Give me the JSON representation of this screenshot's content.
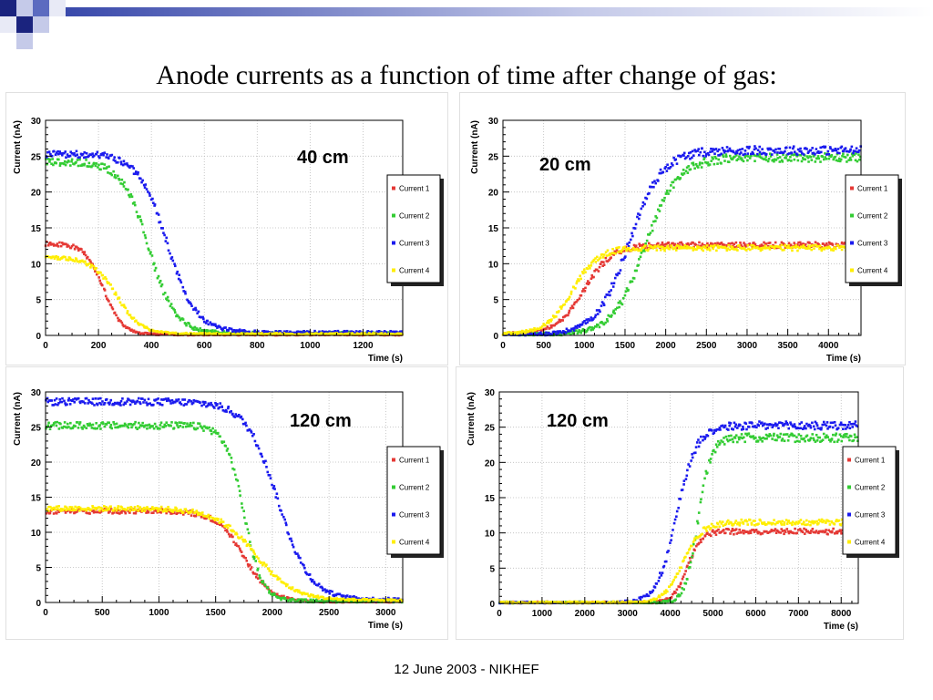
{
  "slide": {
    "title": "Anode currents as a function of time after change of gas:",
    "footer": "12 June 2003 - NIKHEF",
    "decor_colors": [
      "#1a237e",
      "#5c6bc0",
      "#c5cae9",
      "#e8eaf6"
    ]
  },
  "chart_data": [
    {
      "type": "scatter",
      "title": "",
      "annotation": "40 cm",
      "xlabel": "Time (s)",
      "ylabel": "Current (nA)",
      "xlim": [
        0,
        1350
      ],
      "ylim": [
        0,
        30
      ],
      "xticks": [
        0,
        200,
        400,
        600,
        800,
        1000,
        1200
      ],
      "yticks": [
        0,
        5,
        10,
        15,
        20,
        25,
        30
      ],
      "grid": true,
      "legend": "right",
      "series": [
        {
          "name": "Current 1",
          "color": "#e53935",
          "start": 12.8,
          "end": 0.1,
          "mid": 220,
          "width": 35,
          "tmin": 0,
          "tmax": 1350,
          "noise": 0.3
        },
        {
          "name": "Current 2",
          "color": "#33cc33",
          "start": 24.2,
          "end": 0.3,
          "mid": 390,
          "width": 50,
          "tmin": 0,
          "tmax": 1350,
          "noise": 0.5
        },
        {
          "name": "Current 3",
          "color": "#1a1aee",
          "start": 25.3,
          "end": 0.4,
          "mid": 460,
          "width": 55,
          "tmin": 0,
          "tmax": 1350,
          "noise": 0.5
        },
        {
          "name": "Current 4",
          "color": "#ffee00",
          "start": 10.8,
          "end": 0.2,
          "mid": 270,
          "width": 45,
          "tmin": 0,
          "tmax": 1350,
          "noise": 0.3
        }
      ]
    },
    {
      "type": "scatter",
      "title": "",
      "annotation": "20 cm",
      "xlabel": "Time (s)",
      "ylabel": "Current (nA)",
      "xlim": [
        0,
        4400
      ],
      "ylim": [
        0,
        30
      ],
      "xticks": [
        0,
        500,
        1000,
        1500,
        2000,
        2500,
        3000,
        3500,
        4000
      ],
      "yticks": [
        0,
        5,
        10,
        15,
        20,
        25,
        30
      ],
      "grid": true,
      "legend": "right",
      "series": [
        {
          "name": "Current 1",
          "color": "#e53935",
          "start": 0.2,
          "end": 12.6,
          "mid": 1000,
          "width": 170,
          "tmin": 0,
          "tmax": 4400,
          "noise": 0.4
        },
        {
          "name": "Current 2",
          "color": "#33cc33",
          "start": 0.1,
          "end": 24.8,
          "mid": 1750,
          "width": 200,
          "tmin": 0,
          "tmax": 4400,
          "noise": 0.6
        },
        {
          "name": "Current 3",
          "color": "#1a1aee",
          "start": 0.1,
          "end": 25.8,
          "mid": 1550,
          "width": 200,
          "tmin": 0,
          "tmax": 4400,
          "noise": 0.6
        },
        {
          "name": "Current 4",
          "color": "#ffee00",
          "start": 0.2,
          "end": 12.2,
          "mid": 850,
          "width": 160,
          "tmin": 0,
          "tmax": 4400,
          "noise": 0.4
        }
      ]
    },
    {
      "type": "scatter",
      "title": "",
      "annotation": "120 cm",
      "xlabel": "Time (s)",
      "ylabel": "Current (nA)",
      "xlim": [
        0,
        3150
      ],
      "ylim": [
        0,
        30
      ],
      "xticks": [
        0,
        500,
        1000,
        1500,
        2000,
        2500,
        3000
      ],
      "yticks": [
        0,
        5,
        10,
        15,
        20,
        25,
        30
      ],
      "grid": true,
      "legend": "right",
      "series": [
        {
          "name": "Current 1",
          "color": "#e53935",
          "start": 13.0,
          "end": 0.1,
          "mid": 1750,
          "width": 120,
          "tmin": 0,
          "tmax": 3150,
          "noise": 0.35
        },
        {
          "name": "Current 2",
          "color": "#33cc33",
          "start": 25.2,
          "end": 0.2,
          "mid": 1750,
          "width": 80,
          "tmin": 0,
          "tmax": 3150,
          "noise": 0.5
        },
        {
          "name": "Current 3",
          "color": "#1a1aee",
          "start": 28.6,
          "end": 0.4,
          "mid": 2050,
          "width": 140,
          "tmin": 0,
          "tmax": 3150,
          "noise": 0.5
        },
        {
          "name": "Current 4",
          "color": "#ffee00",
          "start": 13.4,
          "end": 0.3,
          "mid": 1850,
          "width": 170,
          "tmin": 0,
          "tmax": 3150,
          "noise": 0.35
        }
      ]
    },
    {
      "type": "scatter",
      "title": "",
      "annotation": "120 cm",
      "xlabel": "Time (s)",
      "ylabel": "Current (nA)",
      "xlim": [
        0,
        8400
      ],
      "ylim": [
        0,
        30
      ],
      "xticks": [
        0,
        1000,
        2000,
        3000,
        4000,
        5000,
        6000,
        7000,
        8000
      ],
      "yticks": [
        0,
        5,
        10,
        15,
        20,
        25,
        30
      ],
      "grid": true,
      "legend": "right",
      "series": [
        {
          "name": "Current 1",
          "color": "#e53935",
          "start": 0.1,
          "end": 10.2,
          "mid": 4400,
          "width": 160,
          "tmin": 0,
          "tmax": 8400,
          "noise": 0.4
        },
        {
          "name": "Current 2",
          "color": "#33cc33",
          "start": 0.0,
          "end": 23.5,
          "mid": 4650,
          "width": 150,
          "tmin": 0,
          "tmax": 8400,
          "noise": 0.6
        },
        {
          "name": "Current 3",
          "color": "#1a1aee",
          "start": 0.0,
          "end": 25.2,
          "mid": 4150,
          "width": 230,
          "tmin": 0,
          "tmax": 8400,
          "noise": 0.6
        },
        {
          "name": "Current 4",
          "color": "#ffee00",
          "start": 0.1,
          "end": 11.5,
          "mid": 4300,
          "width": 220,
          "tmin": 0,
          "tmax": 8400,
          "noise": 0.4
        }
      ]
    }
  ]
}
